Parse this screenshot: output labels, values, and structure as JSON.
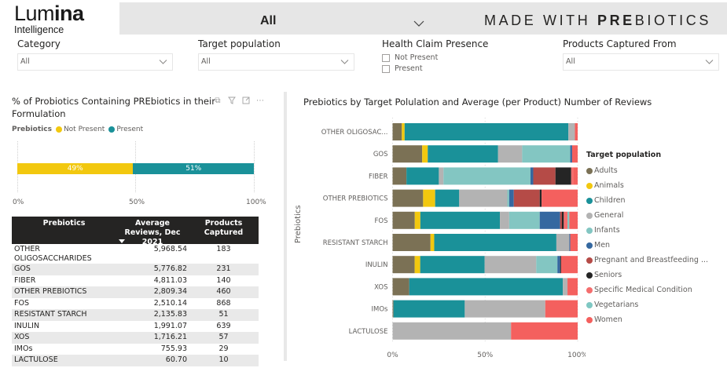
{
  "logo": {
    "thin": "Lum",
    "bold": "ina",
    "sub": "Intelligence"
  },
  "banner": {
    "select_value": "All",
    "title_pre": "MADE WITH ",
    "title_bold": "PRE",
    "title_post": "BIOTICS"
  },
  "slicers": {
    "category": {
      "label": "Category",
      "value": "All"
    },
    "target_population": {
      "label": "Target population",
      "value": "All"
    },
    "health_claim": {
      "label": "Health Claim Presence",
      "options": [
        "Not Present",
        "Present"
      ]
    },
    "products_captured_from": {
      "label": "Products Captured From",
      "value": "All"
    }
  },
  "left_visual": {
    "title": "% of Probiotics Containing PREbiotics in their Formulation",
    "icons": [
      "copy-icon",
      "filter-icon",
      "focus-mode-icon",
      "more-options-icon"
    ]
  },
  "table": {
    "headers": [
      "Prebiotics",
      "Average Reviews, Dec 2021",
      "Products Captured"
    ],
    "rows": [
      [
        "OTHER OLIGOSACCHARIDES",
        "5,968.54",
        "183"
      ],
      [
        "GOS",
        "5,776.82",
        "231"
      ],
      [
        "FIBER",
        "4,811.03",
        "140"
      ],
      [
        "OTHER PREBIOTICS",
        "2,809.34",
        "460"
      ],
      [
        "FOS",
        "2,510.14",
        "868"
      ],
      [
        "RESISTANT STARCH",
        "2,135.83",
        "51"
      ],
      [
        "INULIN",
        "1,991.07",
        "639"
      ],
      [
        "XOS",
        "1,716.21",
        "57"
      ],
      [
        "IMOs",
        "755.93",
        "29"
      ],
      [
        "LACTULOSE",
        "60.70",
        "10"
      ]
    ]
  },
  "right_visual": {
    "title": "Prebiotics by Target Polulation and Average (per Product) Number of Reviews"
  },
  "chart_data": [
    {
      "type": "bar",
      "orientation": "horizontal-stacked-100",
      "title": "% of Probiotics Containing PREbiotics in their Formulation",
      "legend_title": "Prebiotics",
      "legend_position": "top-left",
      "categories": [
        ""
      ],
      "series": [
        {
          "name": "Not Present",
          "color": "#F2C80F",
          "values": [
            49
          ],
          "label": "49%"
        },
        {
          "name": "Present",
          "color": "#1A9199",
          "values": [
            51
          ],
          "label": "51%"
        }
      ],
      "xticks": [
        "0%",
        "50%",
        "100%"
      ],
      "xlim": [
        0,
        100
      ]
    },
    {
      "type": "bar",
      "orientation": "horizontal-stacked-100",
      "title": "Prebiotics by Target Polulation and Average (per Product) Number of Reviews",
      "ylabel": "Prebiotics",
      "xlabel": "",
      "legend_title": "Target population",
      "legend_position": "right",
      "categories": [
        "OTHER OLIGOSAC...",
        "GOS",
        "FIBER",
        "OTHER PREBIOTICS",
        "FOS",
        "RESISTANT STARCH",
        "INULIN",
        "XOS",
        "IMOs",
        "LACTULOSE"
      ],
      "legend": [
        {
          "name": "Adults",
          "color": "#7B7155"
        },
        {
          "name": "Animals",
          "color": "#F2C80F"
        },
        {
          "name": "Children",
          "color": "#1A9199"
        },
        {
          "name": "General",
          "color": "#B3B3B3"
        },
        {
          "name": "Infants",
          "color": "#83C6C2"
        },
        {
          "name": "Men",
          "color": "#3568A0"
        },
        {
          "name": "Pregnant and Breastfeeding ...",
          "color": "#B54B47"
        },
        {
          "name": "Seniors",
          "color": "#252525"
        },
        {
          "name": "Specific Medical Condition",
          "color": "#F46E6E"
        },
        {
          "name": "Vegetarians",
          "color": "#7FC8C3"
        },
        {
          "name": "Women",
          "color": "#F4605E"
        }
      ],
      "series": [
        {
          "name": "Adults",
          "values": [
            5,
            16,
            7.5,
            16.5,
            12,
            20.5,
            12,
            9,
            0.5,
            0
          ]
        },
        {
          "name": "Animals",
          "values": [
            1.5,
            3,
            0,
            6.5,
            3,
            2,
            3,
            0,
            0,
            0
          ]
        },
        {
          "name": "Children",
          "values": [
            88.5,
            38,
            17.5,
            13,
            43,
            66,
            35,
            83,
            38.5,
            0
          ]
        },
        {
          "name": "General",
          "values": [
            3.5,
            13,
            2.5,
            26,
            5,
            7,
            28,
            2.5,
            43.5,
            64
          ]
        },
        {
          "name": "Infants",
          "values": [
            0,
            26,
            47,
            1,
            16.5,
            0,
            11.5,
            0,
            0,
            0
          ]
        },
        {
          "name": "Men",
          "values": [
            0,
            1,
            1.5,
            2.5,
            11,
            0.5,
            1.5,
            0,
            0,
            0
          ]
        },
        {
          "name": "Pregnant and Breastfeeding ...",
          "values": [
            0,
            0,
            12,
            14,
            1,
            0,
            0,
            0,
            0,
            0
          ]
        },
        {
          "name": "Seniors",
          "values": [
            0,
            0,
            8.5,
            1,
            1,
            0,
            0.5,
            0,
            0,
            0
          ]
        },
        {
          "name": "Specific Medical Condition",
          "values": [
            0,
            0,
            1,
            0,
            2,
            0,
            0,
            0,
            0,
            0
          ]
        },
        {
          "name": "Vegetarians",
          "values": [
            0,
            0,
            0,
            0,
            1,
            0,
            0,
            0,
            0,
            0
          ]
        },
        {
          "name": "Women",
          "values": [
            1.5,
            3,
            2.5,
            19.5,
            4.5,
            4,
            9,
            5.5,
            17.5,
            36
          ]
        }
      ],
      "xticks": [
        "0%",
        "50%",
        "100%"
      ],
      "xlim": [
        0,
        100
      ]
    }
  ]
}
